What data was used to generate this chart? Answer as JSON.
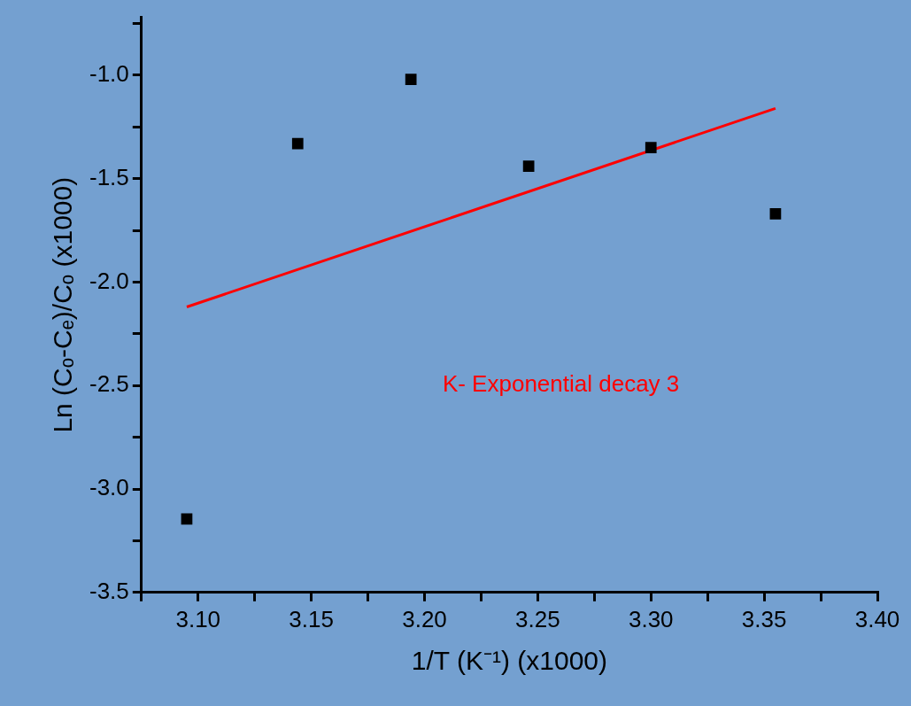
{
  "chart_data": {
    "type": "scatter",
    "xlabel": "1/T (K⁻¹) (x1000)",
    "ylabel": "Ln (Cₒ-Cₑ)/Cₒ (x1000)",
    "series": [
      {
        "type": "scatter",
        "color": "#000000",
        "marker": "square",
        "x": [
          3.095,
          3.144,
          3.194,
          3.246,
          3.3,
          3.355
        ],
        "values": [
          -3.145,
          -1.33,
          -1.02,
          -1.44,
          -1.35,
          -1.67
        ]
      },
      {
        "type": "line",
        "color": "#ff0000",
        "marker": "none",
        "line_style": "solid",
        "x": [
          3.095,
          3.355
        ],
        "values": [
          -2.12,
          -1.16
        ]
      }
    ],
    "annotations": [
      "K- Exponential decay 3"
    ],
    "xlim": [
      3.075,
      3.4
    ],
    "ylim": [
      -3.5,
      -0.72
    ],
    "xticks": [
      {
        "value": 3.075,
        "label": null
      },
      {
        "value": 3.1,
        "label": "3.10"
      },
      {
        "value": 3.125,
        "label": null
      },
      3.15,
      {
        "value": 3.175,
        "label": null
      },
      {
        "value": 3.2,
        "label": "3.20"
      },
      {
        "value": 3.225,
        "label": null
      },
      3.25,
      {
        "value": 3.275,
        "label": null
      },
      {
        "value": 3.3,
        "label": "3.30"
      },
      {
        "value": 3.325,
        "label": null
      },
      3.35,
      {
        "value": 3.375,
        "label": null
      },
      {
        "value": 3.4,
        "label": "3.40"
      }
    ],
    "yticks": [
      -3.5,
      {
        "value": -3.25,
        "label": null
      },
      {
        "value": -3,
        "label": "-3.0"
      },
      {
        "value": -2.75,
        "label": null
      },
      -2.5,
      {
        "value": -2.25,
        "label": null
      },
      {
        "value": -2,
        "label": "-2.0"
      },
      {
        "value": -1.75,
        "label": null
      },
      -1.5,
      {
        "value": -1.25,
        "label": null
      },
      {
        "value": -1,
        "label": "-1.0"
      },
      {
        "value": -0.75,
        "label": null
      }
    ],
    "grid": false,
    "legend": false
  }
}
